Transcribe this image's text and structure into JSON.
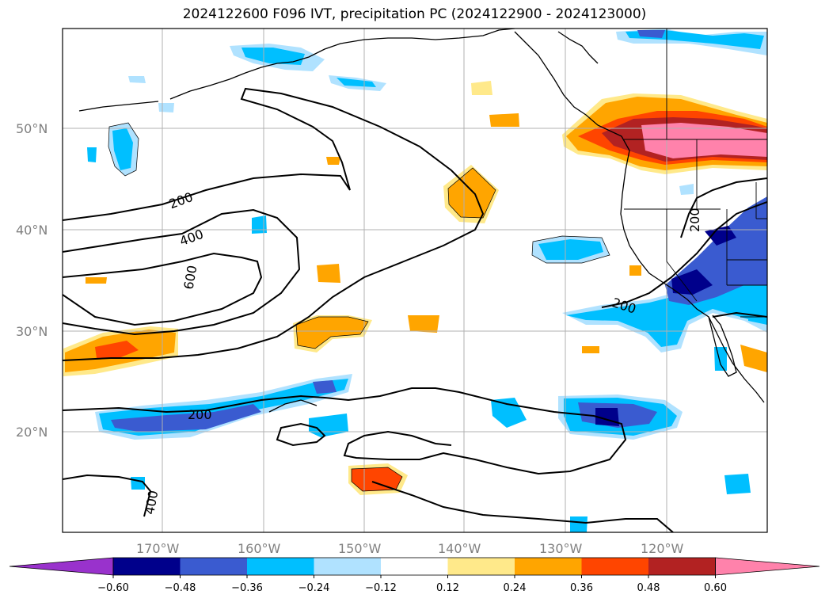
{
  "title": "2024122600 F096 IVT, precipitation PC (2024122900 - 2024123000)",
  "lat_labels": [
    "50°N",
    "40°N",
    "30°N",
    "20°N"
  ],
  "lon_labels": [
    "170°W",
    "160°W",
    "150°W",
    "140°W",
    "130°W",
    "120°W"
  ],
  "colorbar": {
    "ticks": [
      "−0.60",
      "−0.48",
      "−0.36",
      "−0.24",
      "−0.12",
      "0.12",
      "0.24",
      "0.36",
      "0.48",
      "0.60"
    ],
    "colors": [
      "#9932cc",
      "#00008b",
      "#3a5bd0",
      "#00bfff",
      "#b0e2ff",
      "#ffffff",
      "#ffe98a",
      "#ffa500",
      "#ff4500",
      "#b22222",
      "#ff82ab"
    ]
  },
  "contour_labels": [
    "200",
    "400",
    "600",
    "200",
    "200",
    "200",
    "400"
  ],
  "colors": {
    "grid": "#b0b0b0",
    "coast": "#000000",
    "contour": "#000000"
  }
}
